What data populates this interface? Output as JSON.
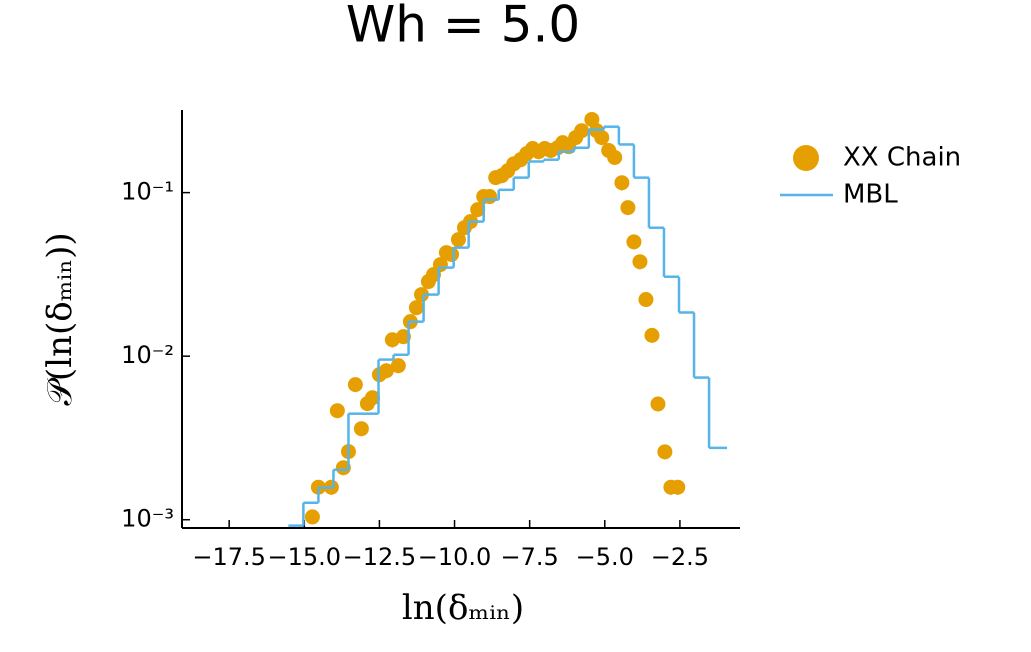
{
  "chart_data": {
    "type": "scatter-step",
    "title": "Wh = 5.0",
    "xlabel": "ln(δₘᵢₙ)",
    "ylabel": "𝒫(ln(δₘᵢₙ))",
    "xlim": [
      -19.07,
      -0.5
    ],
    "ylim": [
      0.00089,
      0.32
    ],
    "yscale": "log",
    "xticks": [
      {
        "value": -17.5,
        "label": "−17.5"
      },
      {
        "value": -15,
        "label": "−15.0"
      },
      {
        "value": -12.5,
        "label": "−12.5"
      },
      {
        "value": -10,
        "label": "−10.0"
      },
      {
        "value": -7.5,
        "label": "−7.5"
      },
      {
        "value": -5,
        "label": "−5.0"
      },
      {
        "value": -2.5,
        "label": "−2.5"
      }
    ],
    "yticks": [
      {
        "value": 0.001,
        "label": "10⁻³"
      },
      {
        "value": 0.01,
        "label": "10⁻²"
      },
      {
        "value": 0.1,
        "label": "10⁻¹"
      }
    ],
    "series": [
      {
        "name": "XX Chain",
        "type": "scatter",
        "color": "#e69f00",
        "x": [
          -14.73,
          -14.53,
          -14.1,
          -13.9,
          -13.7,
          -13.53,
          -13.3,
          -13.1,
          -12.9,
          -12.73,
          -12.5,
          -12.27,
          -12.07,
          -11.87,
          -11.7,
          -11.47,
          -11.27,
          -11.1,
          -10.87,
          -10.7,
          -10.47,
          -10.27,
          -10.1,
          -9.87,
          -9.67,
          -9.47,
          -9.23,
          -9.03,
          -8.83,
          -8.63,
          -8.43,
          -8.23,
          -8.03,
          -7.8,
          -7.6,
          -7.4,
          -7.2,
          -7.0,
          -6.8,
          -6.57,
          -6.4,
          -6.2,
          -5.97,
          -5.77,
          -5.43,
          -5.27,
          -5.1,
          -4.87,
          -4.67,
          -4.43,
          -4.23,
          -4.03,
          -3.83,
          -3.63,
          -3.43,
          -3.23,
          -3.0,
          -2.8,
          -2.57
        ],
        "values": [
          0.00104,
          0.00158,
          0.00158,
          0.00464,
          0.00208,
          0.00261,
          0.0067,
          0.0036,
          0.00513,
          0.00557,
          0.00771,
          0.00815,
          0.0126,
          0.00875,
          0.01316,
          0.01626,
          0.0198,
          0.0238,
          0.0286,
          0.0315,
          0.0363,
          0.043,
          0.0419,
          0.0516,
          0.061,
          0.0665,
          0.0787,
          0.0946,
          0.0946,
          0.1235,
          0.127,
          0.136,
          0.15,
          0.159,
          0.173,
          0.186,
          0.178,
          0.186,
          0.181,
          0.188,
          0.202,
          0.191,
          0.217,
          0.239,
          0.28,
          0.239,
          0.217,
          0.181,
          0.164,
          0.115,
          0.081,
          0.05,
          0.0378,
          0.0222,
          0.0134,
          0.0051,
          0.0026,
          0.00158,
          0.00158
        ],
        "errors": [
          0.0001,
          0.00016,
          0.00016,
          0.00046,
          0.00021,
          0.00026,
          0.00067,
          0.00036,
          0.00051,
          0.00056,
          0.00077,
          0.00082,
          0.0013,
          0.00088,
          0.0013,
          0.0016,
          0.002,
          0.0024,
          0.0029,
          0.0032,
          0.0036,
          0.0043,
          0.0042,
          0.0052,
          0.0061,
          0.0067,
          0.0079,
          0.0095,
          0.0095,
          0.012,
          0.013,
          0.014,
          0.015,
          0.016,
          0.017,
          0.019,
          0.018,
          0.019,
          0.018,
          0.019,
          0.02,
          0.019,
          0.022,
          0.024,
          0.028,
          0.024,
          0.022,
          0.018,
          0.016,
          0.012,
          0.0081,
          0.005,
          0.0038,
          0.0022,
          0.0013,
          0.0005,
          0.00026,
          0.00016,
          0.00016
        ]
      },
      {
        "name": "MBL",
        "type": "step",
        "color": "#56b4e9",
        "bins": [
          -15.53,
          -15.03,
          -14.53,
          -14.03,
          -13.53,
          -13.03,
          -12.53,
          -12.03,
          -11.53,
          -11.03,
          -10.53,
          -10.03,
          -9.53,
          -9.03,
          -8.53,
          -8.03,
          -7.53,
          -7.03,
          -6.53,
          -6.03,
          -5.53,
          -5.03,
          -4.53,
          -4.03,
          -3.53,
          -3.03,
          -2.53,
          -2.03,
          -1.53,
          -0.93
        ],
        "values": [
          0.00092,
          0.00127,
          0.00157,
          0.00202,
          0.00445,
          0.00445,
          0.00953,
          0.0102,
          0.01626,
          0.0238,
          0.0348,
          0.0461,
          0.0665,
          0.0906,
          0.104,
          0.1235,
          0.155,
          0.159,
          0.178,
          0.188,
          0.243,
          0.253,
          0.197,
          0.1235,
          0.061,
          0.0306,
          0.0185,
          0.0074,
          0.00275
        ]
      }
    ]
  }
}
